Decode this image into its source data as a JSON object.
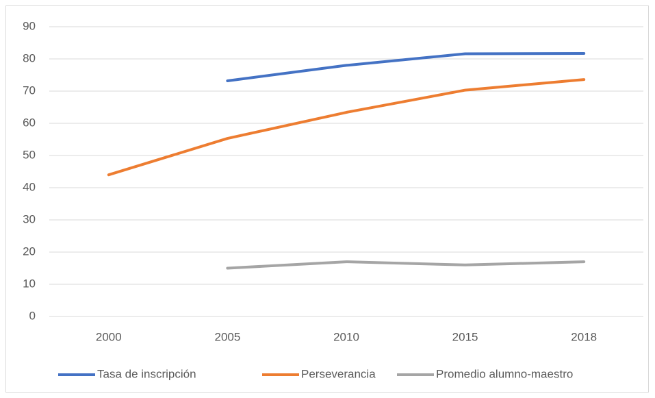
{
  "chart_data": {
    "type": "line",
    "categories": [
      "2000",
      "2005",
      "2010",
      "2015",
      "2018"
    ],
    "series": [
      {
        "name": "Tasa de inscripción",
        "color": "#4472c4",
        "values": [
          null,
          73.2,
          78,
          81.6,
          81.7
        ]
      },
      {
        "name": "Perseverancia",
        "color": "#ed7d31",
        "values": [
          44,
          55.3,
          63.4,
          70.3,
          73.6
        ]
      },
      {
        "name": "Promedio alumno-maestro",
        "color": "#a5a5a5",
        "values": [
          null,
          15,
          17,
          16,
          17
        ]
      }
    ],
    "ylim": [
      0,
      90
    ],
    "yticks": [
      0,
      10,
      20,
      30,
      40,
      50,
      60,
      70,
      80,
      90
    ],
    "grid": true,
    "legend": "bottom"
  }
}
